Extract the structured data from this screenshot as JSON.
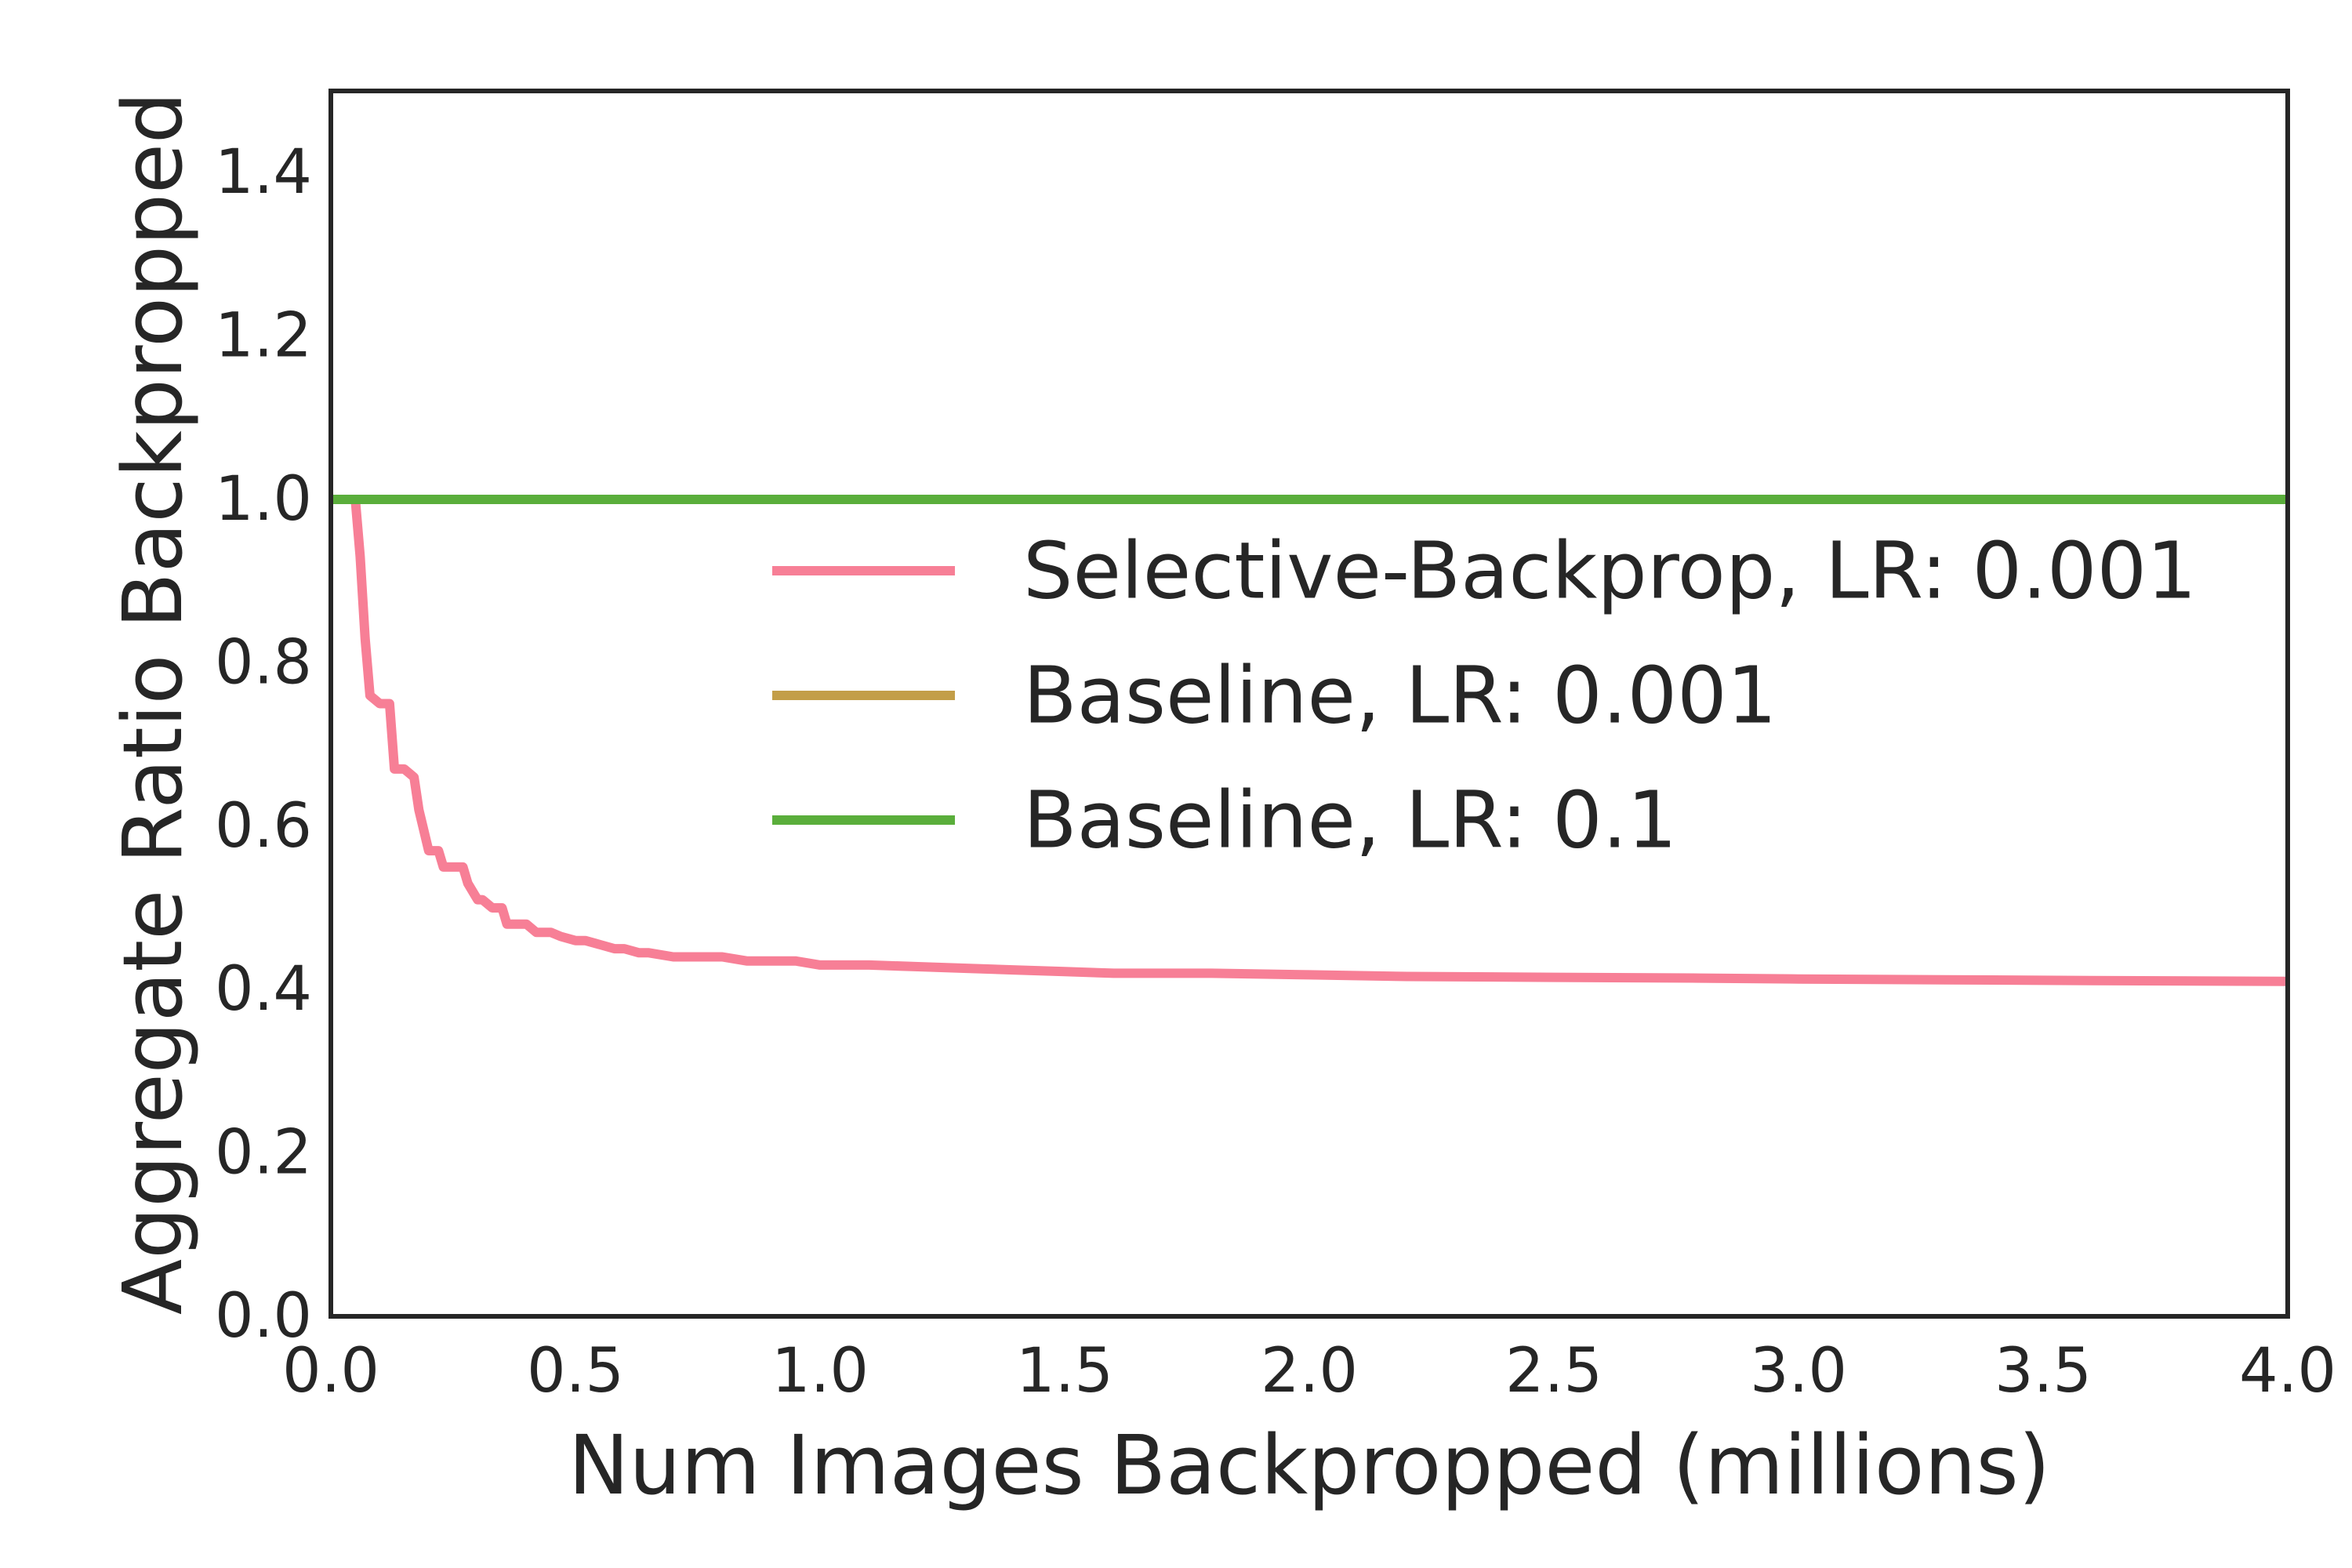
{
  "chart_data": {
    "type": "line",
    "xlabel": "Num Images Backpropped (millions)",
    "ylabel": "Aggregate Ratio Backpropped",
    "xlim": [
      0.0,
      4.0
    ],
    "ylim": [
      0.0,
      1.5
    ],
    "xticks": [
      "0.0",
      "0.5",
      "1.0",
      "1.5",
      "2.0",
      "2.5",
      "3.0",
      "3.5",
      "4.0"
    ],
    "yticks": [
      "0.0",
      "0.2",
      "0.4",
      "0.6",
      "0.8",
      "1.0",
      "1.2",
      "1.4"
    ],
    "grid": false,
    "legend_position": "right",
    "series": [
      {
        "name": "Selective-Backprop, LR: 0.001",
        "color": "#f77f96",
        "x": [
          0.05,
          0.06,
          0.07,
          0.08,
          0.1,
          0.12,
          0.13,
          0.15,
          0.17,
          0.18,
          0.2,
          0.22,
          0.23,
          0.25,
          0.27,
          0.28,
          0.3,
          0.31,
          0.33,
          0.35,
          0.36,
          0.38,
          0.4,
          0.42,
          0.45,
          0.47,
          0.5,
          0.52,
          0.55,
          0.58,
          0.6,
          0.63,
          0.65,
          0.7,
          0.75,
          0.8,
          0.85,
          0.9,
          0.95,
          1.0,
          1.1,
          1.2,
          1.3,
          1.4,
          1.5,
          1.6,
          1.8,
          2.0,
          2.2,
          2.5,
          2.8,
          3.0,
          3.3,
          3.6,
          4.0
        ],
        "y": [
          1.0,
          0.93,
          0.83,
          0.76,
          0.75,
          0.75,
          0.67,
          0.67,
          0.66,
          0.62,
          0.57,
          0.57,
          0.55,
          0.55,
          0.55,
          0.53,
          0.51,
          0.51,
          0.5,
          0.5,
          0.48,
          0.48,
          0.48,
          0.47,
          0.47,
          0.465,
          0.46,
          0.46,
          0.455,
          0.45,
          0.45,
          0.445,
          0.445,
          0.44,
          0.44,
          0.44,
          0.435,
          0.435,
          0.435,
          0.43,
          0.43,
          0.428,
          0.426,
          0.424,
          0.422,
          0.42,
          0.42,
          0.418,
          0.416,
          0.415,
          0.414,
          0.413,
          0.412,
          0.411,
          0.41
        ]
      },
      {
        "name": "Baseline, LR: 0.001",
        "color": "#c39e48",
        "x": [
          0.0,
          4.0
        ],
        "y": [
          1.0,
          1.0
        ]
      },
      {
        "name": "Baseline, LR: 0.1",
        "color": "#5aae3b",
        "x": [
          0.0,
          4.0
        ],
        "y": [
          1.0,
          1.0
        ]
      }
    ]
  }
}
